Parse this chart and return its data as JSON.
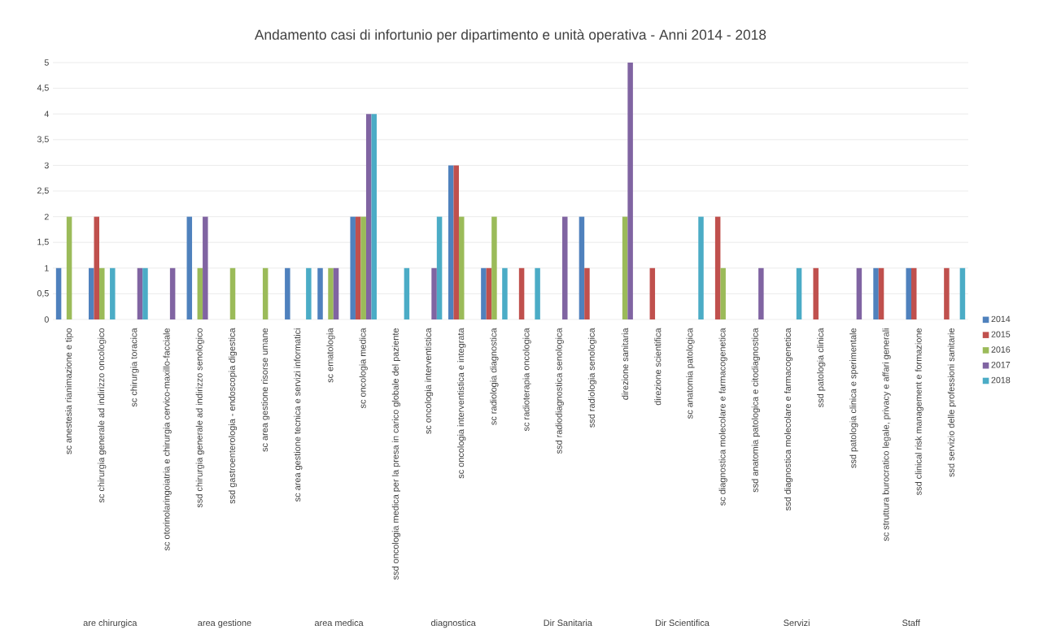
{
  "chart_data": {
    "type": "bar",
    "title": "Andamento casi di infortunio per dipartimento e unità operativa - Anni 2014 - 2018",
    "categories": [
      "sc anestesia rianimazione e tipo",
      "sc chirurgia generale ad indirizzo oncologico",
      "sc chirurgia toracica",
      "sc otorinolaringoiatria e chirurgia cervico-maxillo-facciale",
      "ssd chirurgia generale ad indirizzo senologico",
      "ssd gastroenterologia - endoscopia digestica",
      "sc area gestione risorse umane",
      "sc area gestione tecnica e servizi informatici",
      "sc ematologia",
      "sc oncologia medica",
      "ssd oncologia medica per la presa in carico globale del paziente",
      "sc oncologia interventistica",
      "sc oncologia interventistica e integrata",
      "sc radiologia diagnostica",
      "sc radioterapia oncologica",
      "ssd radiodiagnostica senologica",
      "ssd radiologia senologica",
      "direzione sanitaria",
      "direzione scientifica",
      "sc anatomia patologica",
      "sc diagnostica molecolare e farmacogenetica",
      "ssd anatomia patologica e citodiagnostica",
      "ssd diagnostica molecolare e farmacogenetica",
      "ssd patologia clinica",
      "ssd patologia clinica e sperimentale",
      "sc struttura burocratico legale, privacy e affari generali",
      "ssd clinical risk management e formazione",
      "ssd servizio delle professioni sanitarie"
    ],
    "series": [
      {
        "name": "2014",
        "color": "#4f81bd",
        "values": [
          1,
          1,
          null,
          null,
          2,
          null,
          null,
          1,
          1,
          2,
          null,
          null,
          3,
          1,
          null,
          null,
          2,
          null,
          null,
          null,
          null,
          null,
          null,
          null,
          null,
          1,
          1,
          null
        ]
      },
      {
        "name": "2015",
        "color": "#c0504d",
        "values": [
          null,
          2,
          null,
          null,
          null,
          null,
          null,
          null,
          null,
          2,
          null,
          null,
          3,
          1,
          1,
          null,
          1,
          null,
          1,
          null,
          2,
          null,
          null,
          1,
          null,
          1,
          1,
          1
        ]
      },
      {
        "name": "2016",
        "color": "#9bbb59",
        "values": [
          2,
          1,
          null,
          null,
          1,
          1,
          1,
          null,
          1,
          2,
          null,
          null,
          2,
          2,
          null,
          null,
          null,
          2,
          null,
          null,
          1,
          null,
          null,
          null,
          null,
          null,
          null,
          null
        ]
      },
      {
        "name": "2017",
        "color": "#8064a2",
        "values": [
          null,
          null,
          1,
          1,
          2,
          null,
          null,
          null,
          1,
          4,
          null,
          1,
          null,
          null,
          null,
          2,
          null,
          5,
          null,
          null,
          null,
          1,
          null,
          null,
          1,
          null,
          null,
          null
        ]
      },
      {
        "name": "2018",
        "color": "#4bacc6",
        "values": [
          null,
          1,
          1,
          null,
          null,
          null,
          null,
          1,
          null,
          4,
          1,
          2,
          null,
          1,
          1,
          null,
          null,
          null,
          null,
          2,
          null,
          null,
          1,
          null,
          null,
          null,
          null,
          1
        ]
      }
    ],
    "ylim": [
      0,
      5
    ],
    "yticks": [
      0,
      {
        "value": 0.5,
        "label": "0,5"
      },
      1,
      {
        "value": 1.5,
        "label": "1,5"
      },
      2,
      {
        "value": 2.5,
        "label": "2,5"
      },
      3,
      {
        "value": 3.5,
        "label": "3,5"
      },
      4,
      {
        "value": 4.5,
        "label": "4,5"
      },
      5
    ],
    "grid": "y",
    "legend": "right",
    "annotations": [
      "are chirurgica",
      "area gestione",
      "area medica",
      "diagnostica",
      "Dir Sanitaria",
      "Dir Scientifica",
      "Servizi",
      "Staff"
    ]
  }
}
